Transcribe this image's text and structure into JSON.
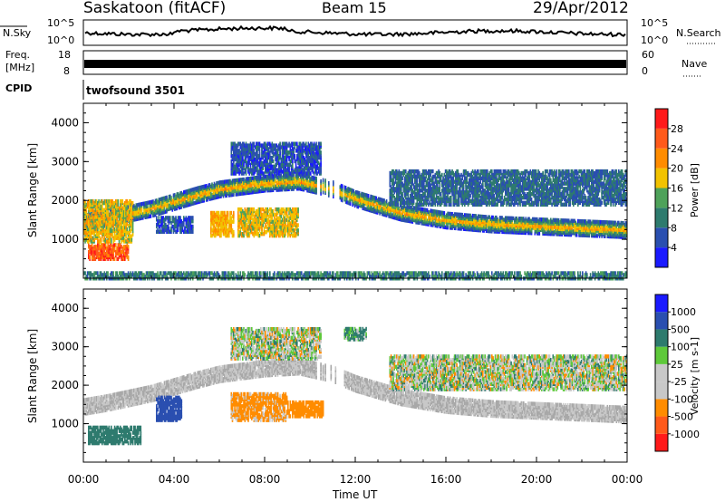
{
  "header": {
    "station": "Saskatoon (fitACF)",
    "beam": "Beam 15",
    "date": "29/Apr/2012"
  },
  "noise_panel": {
    "left_label": "N.Sky",
    "right_label": "N.Search",
    "left_ticks": [
      "10^5",
      "10^0"
    ],
    "right_ticks": [
      "10^5",
      "10^0"
    ]
  },
  "freq_panel": {
    "left_label_1": "Freq.",
    "left_label_2": "[MHz]",
    "right_label": "Nave",
    "left_ticks": [
      "18",
      "8"
    ],
    "right_ticks": [
      "60",
      "0"
    ]
  },
  "cpid_panel": {
    "label": "CPID",
    "value": "twofsound 3501"
  },
  "colors": {
    "power": [
      "#1a1aff",
      "#2a4fb0",
      "#2e7b6e",
      "#4ea25a",
      "#f2c200",
      "#ff8c00",
      "#ff5a1a",
      "#ff1a1a"
    ],
    "velocity": [
      "#1a1aff",
      "#2a4fb0",
      "#2e7b6e",
      "#5ec93a",
      "#c8c8c8",
      "#c8c8c8",
      "#ff8c00",
      "#ff5a1a",
      "#ff1a1a"
    ]
  },
  "chart_data": [
    {
      "type": "heatmap",
      "title": "Power",
      "xlabel": "",
      "ylabel": "Slant Range [km]",
      "xlim": [
        0,
        24
      ],
      "ylim": [
        0,
        4500
      ],
      "yticks": [
        1000,
        2000,
        3000,
        4000
      ],
      "colorbar": {
        "label": "Power [dB]",
        "ticks": [
          "28",
          "24",
          "20",
          "16",
          "12",
          "8",
          "4"
        ]
      },
      "bands": [
        {
          "name": "main",
          "points": [
            [
              0,
              1450
            ],
            [
              1,
              1550
            ],
            [
              3,
              1800
            ],
            [
              5,
              2150
            ],
            [
              6,
              2300
            ],
            [
              8,
              2450
            ],
            [
              9.5,
              2500
            ],
            [
              11,
              2300
            ],
            [
              12,
              2050
            ],
            [
              14,
              1700
            ],
            [
              16,
              1500
            ],
            [
              18,
              1400
            ],
            [
              20,
              1350
            ],
            [
              22,
              1300
            ],
            [
              24,
              1250
            ]
          ],
          "width": 380,
          "power_dB": 22
        }
      ],
      "patches": [
        {
          "t": [
            0.2,
            2.0
          ],
          "r": [
            500,
            900
          ],
          "power_dB": 26
        },
        {
          "t": [
            0,
            2.2
          ],
          "r": [
            950,
            2000
          ],
          "power_dB": 18
        },
        {
          "t": [
            5.6,
            6.6
          ],
          "r": [
            1100,
            1700
          ],
          "power_dB": 20
        },
        {
          "t": [
            6.8,
            9.5
          ],
          "r": [
            1100,
            1800
          ],
          "power_dB": 18
        },
        {
          "t": [
            3.2,
            4.8
          ],
          "r": [
            1200,
            1600
          ],
          "power_dB": 6
        },
        {
          "t": [
            6.5,
            10.5
          ],
          "r": [
            2700,
            3500
          ],
          "power_dB": 6
        },
        {
          "t": [
            13.5,
            24
          ],
          "r": [
            1900,
            2800
          ],
          "power_dB": 8
        },
        {
          "t": [
            0,
            24
          ],
          "r": [
            0,
            150
          ],
          "power_dB": 10
        }
      ]
    },
    {
      "type": "heatmap",
      "title": "Velocity",
      "xlabel": "Time UT",
      "ylabel": "Slant Range [km]",
      "xlim": [
        0,
        24
      ],
      "ylim": [
        0,
        4500
      ],
      "yticks": [
        1000,
        2000,
        3000,
        4000
      ],
      "xticks": [
        "00:00",
        "04:00",
        "08:00",
        "12:00",
        "16:00",
        "20:00",
        "00:00"
      ],
      "colorbar": {
        "label": "Velocity [m s-1]",
        "ticks": [
          "1000",
          "500",
          "100",
          "25",
          "-25",
          "-100",
          "-500",
          "-1000"
        ]
      },
      "bands": [
        {
          "name": "main",
          "points": [
            [
              0,
              1450
            ],
            [
              1,
              1550
            ],
            [
              3,
              1800
            ],
            [
              5,
              2150
            ],
            [
              6,
              2300
            ],
            [
              8,
              2450
            ],
            [
              9.5,
              2500
            ],
            [
              11,
              2300
            ],
            [
              12,
              2050
            ],
            [
              14,
              1700
            ],
            [
              16,
              1500
            ],
            [
              18,
              1400
            ],
            [
              20,
              1350
            ],
            [
              22,
              1300
            ],
            [
              24,
              1250
            ]
          ],
          "width": 380,
          "velocity": 0
        }
      ],
      "patches": [
        {
          "t": [
            0.2,
            2.5
          ],
          "r": [
            500,
            950
          ],
          "velocity": 300
        },
        {
          "t": [
            3.2,
            4.3
          ],
          "r": [
            1100,
            1700
          ],
          "velocity": 700
        },
        {
          "t": [
            6.5,
            9.0
          ],
          "r": [
            1100,
            1800
          ],
          "velocity": -200
        },
        {
          "t": [
            9.0,
            10.6
          ],
          "r": [
            1200,
            1600
          ],
          "velocity": -300
        },
        {
          "t": [
            6.5,
            10.5
          ],
          "r": [
            2700,
            3500
          ],
          "velocity": 0
        },
        {
          "t": [
            13.5,
            24
          ],
          "r": [
            1900,
            2800
          ],
          "velocity": 0
        },
        {
          "t": [
            11.5,
            12.5
          ],
          "r": [
            3200,
            3500
          ],
          "velocity": 150
        }
      ]
    }
  ]
}
